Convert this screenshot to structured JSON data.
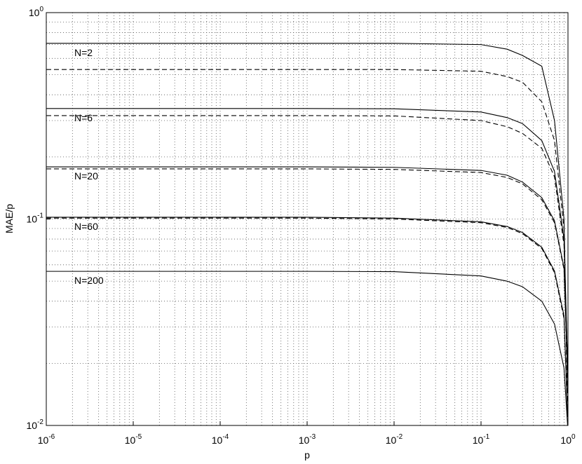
{
  "chart_data": {
    "type": "line",
    "xlabel": "p",
    "ylabel": "MAE/p",
    "log_x": true,
    "log_y": true,
    "grid": true,
    "minor_grid": true,
    "xlim": [
      1e-06,
      1
    ],
    "ylim": [
      0.01,
      1
    ],
    "xticks": [
      {
        "value": 1e-06,
        "label": "10",
        "exponent": "-6"
      },
      {
        "value": 1e-05,
        "label": "10",
        "exponent": "-5"
      },
      {
        "value": 0.0001,
        "label": "10",
        "exponent": "-4"
      },
      {
        "value": 0.001,
        "label": "10",
        "exponent": "-3"
      },
      {
        "value": 0.01,
        "label": "10",
        "exponent": "-2"
      },
      {
        "value": 0.1,
        "label": "10",
        "exponent": "-1"
      },
      {
        "value": 1,
        "label": "10",
        "exponent": "0"
      }
    ],
    "yticks": [
      {
        "value": 0.01,
        "label": "10",
        "exponent": "-2"
      },
      {
        "value": 0.1,
        "label": "10",
        "exponent": "-1"
      },
      {
        "value": 1,
        "label": "10",
        "exponent": "0"
      }
    ],
    "xminorticks": [
      2e-06,
      3e-06,
      4e-06,
      5e-06,
      6e-06,
      7e-06,
      8e-06,
      9e-06,
      2e-05,
      3e-05,
      4e-05,
      5e-05,
      6e-05,
      7e-05,
      8e-05,
      9e-05,
      0.0002,
      0.0003,
      0.0004,
      0.0005,
      0.0006,
      0.0007,
      0.0008,
      0.0009,
      0.002,
      0.003,
      0.004,
      0.005,
      0.006,
      0.007,
      0.008,
      0.009,
      0.02,
      0.03,
      0.04,
      0.05,
      0.06,
      0.07,
      0.08,
      0.09,
      0.2,
      0.3,
      0.4,
      0.5,
      0.6,
      0.7,
      0.8,
      0.9
    ],
    "yminorticks": [
      0.02,
      0.03,
      0.04,
      0.05,
      0.06,
      0.07,
      0.08,
      0.09,
      0.2,
      0.3,
      0.4,
      0.5,
      0.6,
      0.7,
      0.8,
      0.9
    ],
    "x": [
      1e-06,
      1e-05,
      0.0001,
      0.001,
      0.01,
      0.1,
      0.2,
      0.3,
      0.5,
      0.7,
      0.9,
      0.99
    ],
    "series": [
      {
        "style": "solid",
        "color": "#000000",
        "values": [
          0.71,
          0.71,
          0.71,
          0.71,
          0.71,
          0.7,
          0.665,
          0.62,
          0.55,
          0.3,
          0.1,
          0.015
        ]
      },
      {
        "style": "dashed",
        "color": "#000000",
        "values": [
          0.53,
          0.53,
          0.53,
          0.53,
          0.53,
          0.52,
          0.49,
          0.46,
          0.37,
          0.24,
          0.09,
          0.012
        ]
      },
      {
        "style": "solid",
        "color": "#000000",
        "values": [
          0.343,
          0.343,
          0.343,
          0.343,
          0.342,
          0.33,
          0.31,
          0.29,
          0.24,
          0.17,
          0.08,
          0.02
        ]
      },
      {
        "style": "dashed",
        "color": "#000000",
        "values": [
          0.317,
          0.317,
          0.317,
          0.317,
          0.316,
          0.3,
          0.28,
          0.26,
          0.22,
          0.16,
          0.075,
          0.02
        ]
      },
      {
        "style": "solid",
        "color": "#000000",
        "values": [
          0.179,
          0.179,
          0.179,
          0.179,
          0.178,
          0.172,
          0.163,
          0.151,
          0.127,
          0.098,
          0.058,
          0.018
        ]
      },
      {
        "style": "dashed",
        "color": "#000000",
        "values": [
          0.175,
          0.175,
          0.175,
          0.175,
          0.174,
          0.168,
          0.159,
          0.148,
          0.124,
          0.096,
          0.057,
          0.018
        ]
      },
      {
        "style": "solid",
        "color": "#000000",
        "values": [
          0.102,
          0.102,
          0.102,
          0.102,
          0.101,
          0.097,
          0.092,
          0.086,
          0.073,
          0.056,
          0.034,
          0.011
        ]
      },
      {
        "style": "dashed",
        "color": "#000000",
        "values": [
          0.101,
          0.101,
          0.101,
          0.101,
          0.1,
          0.096,
          0.091,
          0.085,
          0.072,
          0.055,
          0.033,
          0.011
        ]
      },
      {
        "style": "solid",
        "color": "#000000",
        "values": [
          0.0558,
          0.0558,
          0.0558,
          0.0558,
          0.0556,
          0.053,
          0.05,
          0.047,
          0.04,
          0.031,
          0.019,
          0.01
        ]
      }
    ],
    "annotations": [
      "N=2",
      "N=6",
      "N=20",
      "N=60",
      "N=200"
    ]
  }
}
